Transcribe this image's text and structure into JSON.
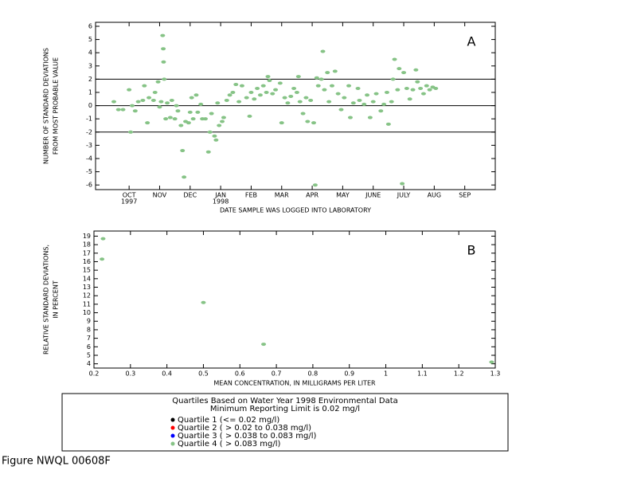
{
  "chart_data": [
    {
      "type": "scatter",
      "label": "A",
      "ylabel": [
        "NUMBER OF STANDARD DEVIATIONS",
        "FROM MOST PROBABLE VALUE"
      ],
      "xlabel": "DATE SAMPLE WAS LOGGED INTO LABORATORY",
      "xlim": [
        -0.6,
        12.5
      ],
      "ylim": [
        -6.35,
        6.3
      ],
      "xticks": [
        {
          "value": 0.5,
          "label": "OCT"
        },
        {
          "value": 1.5,
          "label": "NOV"
        },
        {
          "value": 2.5,
          "label": "DEC"
        },
        {
          "value": 3.5,
          "label": "JAN"
        },
        {
          "value": 4.5,
          "label": "FEB"
        },
        {
          "value": 5.5,
          "label": "MAR"
        },
        {
          "value": 6.5,
          "label": "APR"
        },
        {
          "value": 7.5,
          "label": "MAY"
        },
        {
          "value": 8.5,
          "label": "JUNE"
        },
        {
          "value": 9.5,
          "label": "JULY"
        },
        {
          "value": 10.5,
          "label": "AUG"
        },
        {
          "value": 11.5,
          "label": "SEP"
        }
      ],
      "yticks": [
        -6,
        -5,
        -4,
        -3,
        -2,
        -1,
        0,
        1,
        2,
        3,
        4,
        5,
        6
      ],
      "annotations": [
        {
          "text": "1997",
          "x": 0.5
        },
        {
          "text": "1998",
          "x": 3.5
        }
      ],
      "hlines": [
        2,
        0,
        -2
      ],
      "legend_title": "Quartiles Based on Water Year 1998 Environmental Data",
      "legend_subtitle": "Minimum Reporting Limit is 0.02 mg/l",
      "series": [
        {
          "name": "Quartile 1 (<= 0.02 mg/l)",
          "color": "#000000",
          "x": [],
          "values": []
        },
        {
          "name": "Quartile 2 ( > 0.02 to 0.038 mg/l)",
          "color": "#ff0000",
          "x": [],
          "values": []
        },
        {
          "name": "Quartile 3 ( > 0.038 to 0.083 mg/l)",
          "color": "#0000ff",
          "x": [],
          "values": []
        },
        {
          "name": "Quartile 4 ( > 0.083 mg/l)",
          "color": "#86c386",
          "x": [
            0.0,
            0.15,
            0.3,
            0.5,
            0.55,
            0.6,
            0.7,
            0.8,
            0.95,
            1.0,
            1.1,
            1.15,
            1.3,
            1.35,
            1.45,
            1.5,
            1.55,
            1.6,
            1.62,
            1.63,
            1.65,
            1.7,
            1.75,
            1.85,
            1.9,
            2.0,
            2.05,
            2.1,
            2.2,
            2.25,
            2.3,
            2.35,
            2.45,
            2.5,
            2.55,
            2.6,
            2.7,
            2.75,
            2.85,
            2.9,
            3.0,
            3.1,
            3.15,
            3.2,
            3.3,
            3.35,
            3.4,
            3.45,
            3.55,
            3.6,
            3.7,
            3.8,
            3.9,
            4.0,
            4.1,
            4.2,
            4.35,
            4.45,
            4.5,
            4.6,
            4.7,
            4.8,
            4.9,
            5.0,
            5.05,
            5.1,
            5.2,
            5.3,
            5.45,
            5.5,
            5.6,
            5.7,
            5.8,
            5.9,
            6.0,
            6.05,
            6.1,
            6.2,
            6.3,
            6.35,
            6.45,
            6.55,
            6.6,
            6.65,
            6.7,
            6.8,
            6.85,
            6.9,
            7.0,
            7.05,
            7.15,
            7.25,
            7.35,
            7.45,
            7.55,
            7.7,
            7.75,
            7.85,
            8.0,
            8.05,
            8.2,
            8.3,
            8.4,
            8.5,
            8.6,
            8.75,
            8.85,
            8.95,
            9.0,
            9.1,
            9.15,
            9.2,
            9.3,
            9.35,
            9.45,
            9.5,
            9.6,
            9.7,
            9.8,
            9.9,
            9.95,
            10.05,
            10.15,
            10.25,
            10.35,
            10.45,
            10.55
          ],
          "values": [
            0.3,
            -0.3,
            -0.3,
            1.2,
            -2.0,
            0.0,
            -0.4,
            0.3,
            0.4,
            1.5,
            -1.3,
            0.6,
            0.4,
            1.0,
            1.8,
            -0.1,
            0.3,
            5.3,
            4.3,
            3.3,
            2.0,
            -1.0,
            0.2,
            -0.9,
            0.4,
            -1.0,
            0.0,
            -0.4,
            -1.5,
            -3.4,
            -5.4,
            -1.2,
            -1.3,
            -0.5,
            0.6,
            -1.0,
            0.8,
            -0.5,
            0.1,
            -1.0,
            -1.0,
            -3.5,
            -2.0,
            -0.6,
            -2.3,
            -2.6,
            0.2,
            -1.5,
            -1.2,
            -0.9,
            0.4,
            0.8,
            1.0,
            1.6,
            0.3,
            1.5,
            0.6,
            -0.8,
            1.0,
            0.5,
            1.3,
            0.8,
            1.5,
            1.0,
            2.2,
            1.9,
            0.9,
            1.2,
            1.7,
            -1.3,
            0.6,
            0.2,
            0.7,
            1.3,
            1.0,
            2.2,
            0.3,
            -0.6,
            0.6,
            -1.2,
            0.4,
            -1.3,
            -6.0,
            2.1,
            1.5,
            2.0,
            4.1,
            1.2,
            2.5,
            0.3,
            1.5,
            2.6,
            0.9,
            -0.3,
            0.6,
            1.5,
            -0.9,
            0.2,
            1.3,
            0.4,
            0.1,
            0.8,
            -0.9,
            0.3,
            0.9,
            -0.4,
            0.1,
            1.0,
            -1.4,
            0.3,
            2.0,
            3.5,
            1.2,
            2.8,
            -5.9,
            2.5,
            1.3,
            0.5,
            1.2,
            2.7,
            1.8,
            1.3,
            0.9,
            1.5,
            1.2,
            1.4,
            1.3
          ]
        }
      ]
    },
    {
      "type": "scatter",
      "label": "B",
      "ylabel": [
        "RELATIVE STANDARD DEVIATIONS,",
        "IN PERCENT"
      ],
      "xlabel": "MEAN CONCENTRATION, IN MILLIGRAMS PER LITER",
      "xlim": [
        0.2,
        1.3
      ],
      "ylim": [
        3.5,
        19.6
      ],
      "xticks": [
        0.2,
        0.3,
        0.4,
        0.5,
        0.6,
        0.7,
        0.8,
        0.9,
        1,
        1.1,
        1.2,
        1.3
      ],
      "yticks": [
        4,
        5,
        6,
        7,
        8,
        9,
        10,
        11,
        12,
        13,
        14,
        15,
        16,
        17,
        18,
        19
      ],
      "series": [
        {
          "color": "#86c386",
          "x": [
            0.225,
            0.222,
            0.5,
            0.665,
            1.29
          ],
          "values": [
            18.7,
            16.3,
            11.2,
            6.3,
            4.2
          ]
        }
      ]
    }
  ],
  "caption": "Figure NWQL 00608F"
}
